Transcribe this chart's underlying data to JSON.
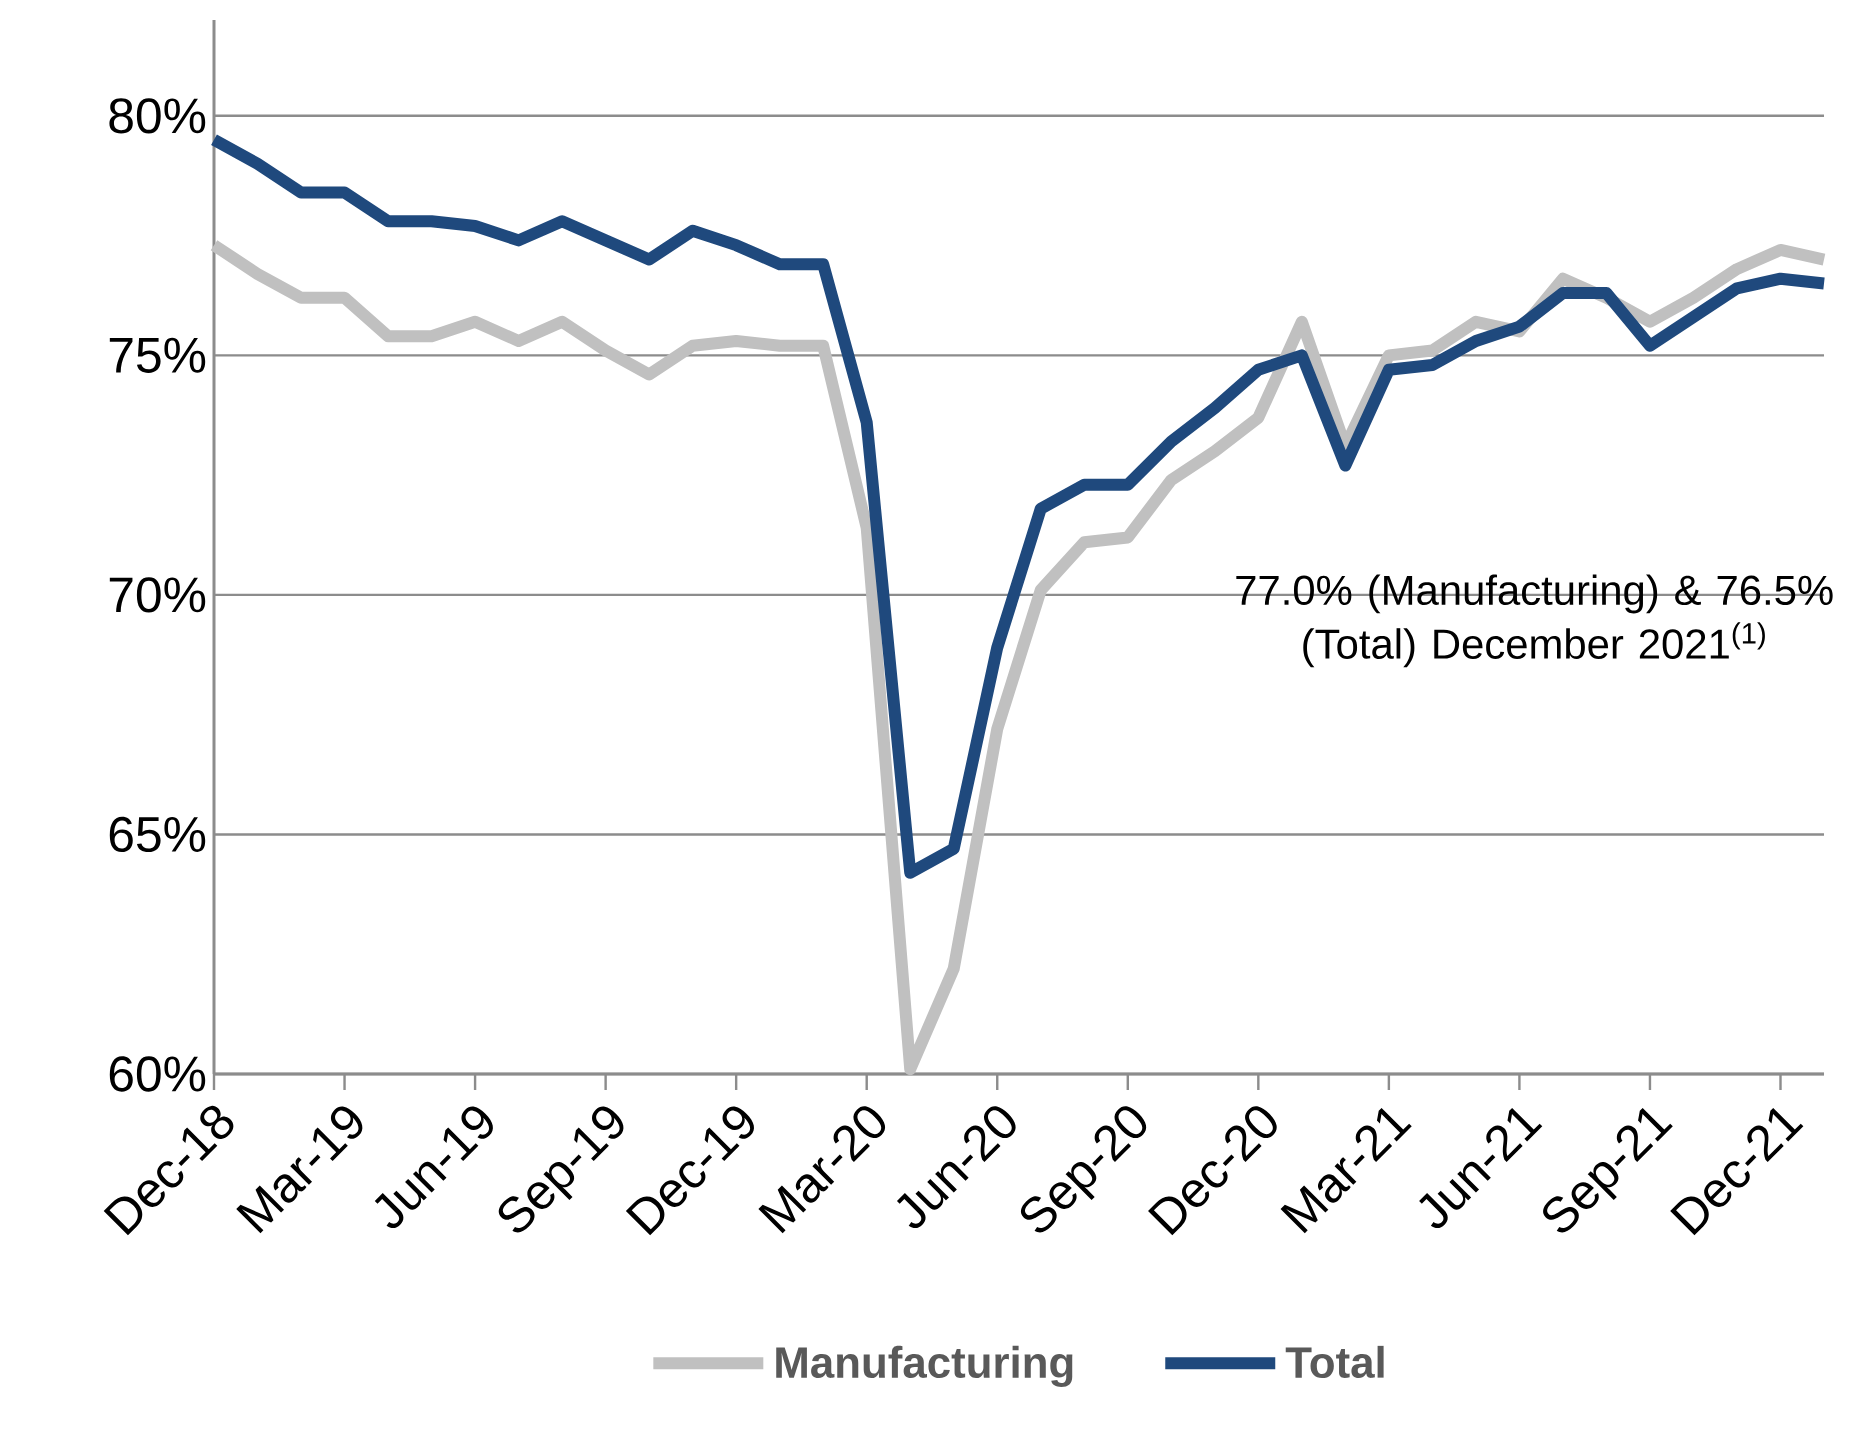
{
  "chart_data": {
    "type": "line",
    "x": [
      "2018-12",
      "2019-01",
      "2019-02",
      "2019-03",
      "2019-04",
      "2019-05",
      "2019-06",
      "2019-07",
      "2019-08",
      "2019-09",
      "2019-10",
      "2019-11",
      "2019-12",
      "2020-01",
      "2020-02",
      "2020-03",
      "2020-04",
      "2020-05",
      "2020-06",
      "2020-07",
      "2020-08",
      "2020-09",
      "2020-10",
      "2020-11",
      "2020-12",
      "2021-01",
      "2021-02",
      "2021-03",
      "2021-04",
      "2021-05",
      "2021-06",
      "2021-07",
      "2021-08",
      "2021-09",
      "2021-10",
      "2021-11",
      "2021-12",
      "2022-01"
    ],
    "series": [
      {
        "name": "Manufacturing",
        "color": "#c0c0c0",
        "values": [
          77.3,
          76.7,
          76.2,
          76.2,
          75.4,
          75.4,
          75.7,
          75.3,
          75.7,
          75.1,
          74.6,
          75.2,
          75.3,
          75.2,
          75.2,
          71.4,
          60.1,
          62.2,
          67.2,
          70.1,
          71.1,
          71.2,
          72.4,
          73.0,
          73.7,
          75.7,
          73.1,
          75.0,
          75.1,
          75.7,
          75.5,
          76.6,
          76.2,
          75.7,
          76.2,
          76.8,
          77.2,
          77.0
        ]
      },
      {
        "name": "Total",
        "color": "#1f497d",
        "values": [
          79.5,
          79.0,
          78.4,
          78.4,
          77.8,
          77.8,
          77.7,
          77.4,
          77.8,
          77.4,
          77.0,
          77.6,
          77.3,
          76.9,
          76.9,
          73.6,
          64.2,
          64.7,
          68.9,
          71.8,
          72.3,
          72.3,
          73.2,
          73.9,
          74.7,
          75.0,
          72.7,
          74.7,
          74.8,
          75.3,
          75.6,
          76.3,
          76.3,
          75.2,
          75.8,
          76.4,
          76.6,
          76.5
        ]
      }
    ],
    "xlim": [
      "2018-12",
      "2022-01"
    ],
    "xticks": [
      {
        "value": "2018-12",
        "label": "Dec-18"
      },
      {
        "value": "2019-03",
        "label": "Mar-19"
      },
      {
        "value": "2019-06",
        "label": "Jun-19"
      },
      {
        "value": "2019-09",
        "label": "Sep-19"
      },
      {
        "value": "2019-12",
        "label": "Dec-19"
      },
      {
        "value": "2020-03",
        "label": "Mar-20"
      },
      {
        "value": "2020-06",
        "label": "Jun-20"
      },
      {
        "value": "2020-09",
        "label": "Sep-20"
      },
      {
        "value": "2020-12",
        "label": "Dec-20"
      },
      {
        "value": "2021-03",
        "label": "Mar-21"
      },
      {
        "value": "2021-06",
        "label": "Jun-21"
      },
      {
        "value": "2021-09",
        "label": "Sep-21"
      },
      {
        "value": "2021-12",
        "label": "Dec-21"
      }
    ],
    "ylim": [
      60,
      82
    ],
    "yticks": [
      {
        "value": 60,
        "label": "60%"
      },
      {
        "value": 65,
        "label": "65%"
      },
      {
        "value": 70,
        "label": "70%"
      },
      {
        "value": 75,
        "label": "75%"
      },
      {
        "value": 80,
        "label": "80%"
      }
    ],
    "grid": "y",
    "legend": "bottom",
    "line_style": "solid",
    "annotations": [
      "77.0% (Manufacturing) & 76.5% (Total) December 2021$^{(1)}$"
    ]
  }
}
